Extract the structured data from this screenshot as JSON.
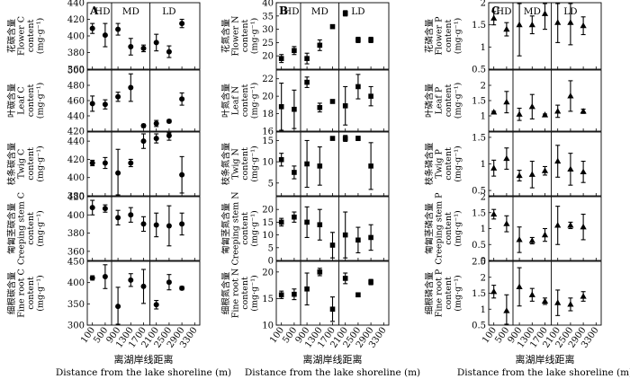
{
  "figure": {
    "x_tick_labels": [
      "100",
      "500",
      "900",
      "1300",
      "1700",
      "2100",
      "2500",
      "2900",
      "3300"
    ],
    "x_axis_label_cn": "离湖岸线距离",
    "x_axis_label_en": "Distance from the lake shoreline (m)",
    "zone_labels": [
      "HD",
      "MD",
      "LD"
    ]
  },
  "chart_data": [
    {
      "type": "scatter",
      "panel": "A",
      "element": "C",
      "marker": "circle",
      "xlabel": "离湖岸线距离 Distance from the lake shoreline (m)",
      "x_ticks": [
        100,
        500,
        900,
        1300,
        1700,
        2100,
        2500,
        2900,
        3300
      ],
      "zones": [
        "HD",
        "MD",
        "LD"
      ],
      "zone_bounds": [
        [
          100,
          500
        ],
        [
          900,
          1700
        ],
        [
          2100,
          2900
        ]
      ],
      "subplots": [
        {
          "ylabel_cn": "花碳含量",
          "ylabel_en": [
            "Flower C",
            "content",
            "(mg·g⁻¹)"
          ],
          "ylim": [
            360,
            440
          ],
          "yticks": [
            360,
            380,
            400,
            420,
            440
          ],
          "x": [
            100,
            500,
            900,
            1300,
            1700,
            2100,
            2500,
            2900
          ],
          "y": [
            409,
            401,
            408,
            387,
            385,
            392,
            381,
            415
          ],
          "err": [
            6,
            14,
            7,
            10,
            4,
            10,
            7,
            5
          ]
        },
        {
          "ylabel_cn": "叶碳含量",
          "ylabel_en": [
            "Leaf C",
            "content",
            "(mg·g⁻¹)"
          ],
          "ylim": [
            420,
            500
          ],
          "yticks": [
            420,
            440,
            460,
            480,
            500
          ],
          "x": [
            100,
            500,
            900,
            1300,
            1700,
            2100,
            2500,
            2900
          ],
          "y": [
            456,
            455,
            465,
            477,
            427,
            430,
            433,
            462
          ],
          "err": [
            10,
            6,
            6,
            18,
            2,
            4,
            2,
            8
          ]
        },
        {
          "ylabel_cn": "枝条碳含量",
          "ylabel_en": [
            "Twig C",
            "content",
            "(mg·g⁻¹)"
          ],
          "ylim": [
            380,
            450
          ],
          "yticks": [
            380,
            400,
            420,
            440
          ],
          "x": [
            100,
            500,
            900,
            1300,
            1700,
            2100,
            2500,
            2900
          ],
          "y": [
            416,
            416,
            405,
            416,
            440,
            443,
            446,
            403
          ],
          "err": [
            3,
            6,
            26,
            4,
            8,
            5,
            5,
            20
          ]
        },
        {
          "ylabel_cn": "匍匐茎碳含量",
          "ylabel_en": [
            "Creeping stem C",
            "content",
            "(mg·g⁻¹)"
          ],
          "ylim": [
            350,
            420
          ],
          "yticks": [
            360,
            380,
            400,
            420
          ],
          "x": [
            100,
            500,
            900,
            1300,
            1700,
            2100,
            2500,
            2900
          ],
          "y": [
            408,
            407,
            397,
            400,
            390,
            389,
            388,
            390
          ],
          "err": [
            8,
            4,
            8,
            8,
            8,
            13,
            22,
            12
          ]
        },
        {
          "ylabel_cn": "细根碳含量",
          "ylabel_en": [
            "Fine root C",
            "content",
            "(mg·g⁻¹)"
          ],
          "ylim": [
            300,
            450
          ],
          "yticks": [
            300,
            350,
            400,
            450
          ],
          "x": [
            100,
            500,
            900,
            1300,
            1700,
            2100,
            2500,
            2900
          ],
          "y": [
            411,
            414,
            344,
            406,
            391,
            348,
            401,
            387
          ],
          "err": [
            5,
            28,
            45,
            15,
            40,
            10,
            18,
            4
          ]
        }
      ]
    },
    {
      "type": "scatter",
      "panel": "B",
      "element": "N",
      "marker": "square",
      "xlabel": "离湖岸线距离 Distance from the lake shoreline (m)",
      "x_ticks": [
        100,
        500,
        900,
        1300,
        1700,
        2100,
        2500,
        2900,
        3300
      ],
      "zones": [
        "HD",
        "MD",
        "LD"
      ],
      "zone_bounds": [
        [
          100,
          500
        ],
        [
          900,
          1700
        ],
        [
          2100,
          2900
        ]
      ],
      "subplots": [
        {
          "ylabel_cn": "花氮含量",
          "ylabel_en": [
            "Flower N",
            "content",
            "(mg·g⁻¹)"
          ],
          "ylim": [
            15,
            40
          ],
          "yticks": [
            20,
            25,
            30,
            35,
            40
          ],
          "x": [
            100,
            500,
            900,
            1300,
            1700,
            2100,
            2500,
            2900
          ],
          "y": [
            19,
            22,
            19,
            24,
            31,
            36,
            26,
            26
          ],
          "err": [
            1.5,
            1.5,
            2,
            2,
            0.5,
            1,
            1,
            1
          ]
        },
        {
          "ylabel_cn": "叶氮含量",
          "ylabel_en": [
            "Leaf N",
            "content",
            "(mg·g⁻¹)"
          ],
          "ylim": [
            16,
            23
          ],
          "yticks": [
            16,
            18,
            20,
            22
          ],
          "x": [
            100,
            500,
            900,
            1300,
            1700,
            2100,
            2500,
            2900
          ],
          "y": [
            18.8,
            18.5,
            21.6,
            18.7,
            19.4,
            18.9,
            21.1,
            20.0
          ],
          "err": [
            2.7,
            2.2,
            0.6,
            0.5,
            0.2,
            2.2,
            1.4,
            1.1
          ]
        },
        {
          "ylabel_cn": "枝条氮含量",
          "ylabel_en": [
            "Twig N",
            "content",
            "(mg·g⁻¹)"
          ],
          "ylim": [
            2,
            17
          ],
          "yticks": [
            5,
            10,
            15
          ],
          "x": [
            100,
            500,
            900,
            1300,
            1700,
            2100,
            2500,
            2900
          ],
          "y": [
            10.5,
            7.5,
            9.5,
            9.0,
            15.5,
            15.5,
            15.5,
            9.0
          ],
          "err": [
            1.5,
            1.5,
            5.5,
            4.5,
            0.3,
            0.7,
            0.5,
            5.5
          ]
        },
        {
          "ylabel_cn": "匍匐茎氮含量",
          "ylabel_en": [
            "Creeping stem N",
            "content",
            "(mg·g⁻¹)"
          ],
          "ylim": [
            0,
            25
          ],
          "yticks": [
            0,
            5,
            10,
            15,
            20
          ],
          "x": [
            100,
            500,
            900,
            1300,
            1700,
            2100,
            2500,
            2900
          ],
          "y": [
            15,
            17,
            15,
            14,
            6,
            10,
            8,
            9
          ],
          "err": [
            1.5,
            2,
            6,
            6,
            5,
            9,
            5,
            5
          ]
        },
        {
          "ylabel_cn": "细根氮含量",
          "ylabel_en": [
            "Fine root N",
            "content",
            "(mg·g⁻¹)"
          ],
          "ylim": [
            10,
            22
          ],
          "yticks": [
            10,
            15,
            20
          ],
          "x": [
            100,
            500,
            900,
            1300,
            1700,
            2100,
            2500,
            2900
          ],
          "y": [
            15.7,
            15.8,
            16.8,
            20.0,
            13.0,
            18.8,
            15.7,
            18.1
          ],
          "err": [
            0.7,
            1.0,
            3.0,
            0.7,
            2.3,
            1.0,
            0.3,
            0.5
          ]
        }
      ]
    },
    {
      "type": "scatter",
      "panel": "C",
      "element": "P",
      "marker": "triangle",
      "xlabel": "离湖岸线距离 Distance from the lake shoreline (m)",
      "x_ticks": [
        100,
        500,
        900,
        1300,
        1700,
        2100,
        2500,
        2900,
        3300
      ],
      "zones": [
        "HD",
        "MD",
        "LD"
      ],
      "zone_bounds": [
        [
          100,
          500
        ],
        [
          900,
          1700
        ],
        [
          2100,
          2900
        ]
      ],
      "subplots": [
        {
          "ylabel_cn": "花磷含量",
          "ylabel_en": [
            "Flower P",
            "content",
            "(mg·g⁻¹)"
          ],
          "ylim": [
            0.5,
            2.0
          ],
          "yticks": [
            0.5,
            1.0,
            1.5,
            2.0
          ],
          "x": [
            100,
            500,
            900,
            1300,
            1700,
            2100,
            2500,
            2900
          ],
          "y": [
            1.65,
            1.4,
            1.5,
            1.5,
            1.75,
            1.55,
            1.55,
            1.48
          ],
          "err": [
            0.15,
            0.15,
            0.7,
            0.2,
            0.35,
            0.45,
            0.5,
            0.2
          ]
        },
        {
          "ylabel_cn": "叶磷含量",
          "ylabel_en": [
            "Leaf P",
            "content",
            "(mg·g⁻¹)"
          ],
          "ylim": [
            0.5,
            2.5
          ],
          "yticks": [
            1.0,
            1.5,
            2.0
          ],
          "x": [
            100,
            500,
            900,
            1300,
            1700,
            2100,
            2500,
            2900
          ],
          "y": [
            1.12,
            1.45,
            1.05,
            1.3,
            1.03,
            1.15,
            1.65,
            1.15
          ],
          "err": [
            0.03,
            0.35,
            0.2,
            0.4,
            0.03,
            0.2,
            0.5,
            0.07
          ]
        },
        {
          "ylabel_cn": "枝条磷含量",
          "ylabel_en": [
            "Twig P",
            "content",
            "(mg·g⁻¹)"
          ],
          "ylim": [
            0.4,
            1.6
          ],
          "yticks": [
            0.5,
            1.0,
            1.5
          ],
          "x": [
            100,
            500,
            900,
            1300,
            1700,
            2100,
            2500,
            2900
          ],
          "y": [
            0.92,
            1.1,
            0.78,
            0.8,
            0.87,
            1.05,
            0.9,
            0.85
          ],
          "err": [
            0.15,
            0.2,
            0.1,
            0.25,
            0.08,
            0.3,
            0.3,
            0.2
          ]
        },
        {
          "ylabel_cn": "匍匐茎磷含量",
          "ylabel_en": [
            "Creeping stem P",
            "content",
            "(mg·g⁻¹)"
          ],
          "ylim": [
            0,
            2.0
          ],
          "yticks": [
            0,
            0.5,
            1.0,
            1.5,
            2.0
          ],
          "x": [
            100,
            500,
            900,
            1300,
            1700,
            2100,
            2500,
            2900
          ],
          "y": [
            1.45,
            1.15,
            0.65,
            0.62,
            0.8,
            1.1,
            1.1,
            1.05
          ],
          "err": [
            0.15,
            0.25,
            0.4,
            0.1,
            0.2,
            0.6,
            0.1,
            0.4
          ]
        },
        {
          "ylabel_cn": "细根磷含量",
          "ylabel_en": [
            "Fine root P",
            "content",
            "(mg·g⁻¹)"
          ],
          "ylim": [
            0.5,
            2.5
          ],
          "yticks": [
            0.5,
            1.0,
            1.5,
            2.0,
            2.5
          ],
          "x": [
            100,
            500,
            900,
            1300,
            1700,
            2100,
            2500,
            2900
          ],
          "y": [
            1.55,
            0.95,
            1.7,
            1.45,
            1.25,
            1.2,
            1.15,
            1.4
          ],
          "err": [
            0.2,
            0.5,
            0.6,
            0.2,
            0.1,
            0.4,
            0.2,
            0.15
          ]
        }
      ]
    }
  ]
}
